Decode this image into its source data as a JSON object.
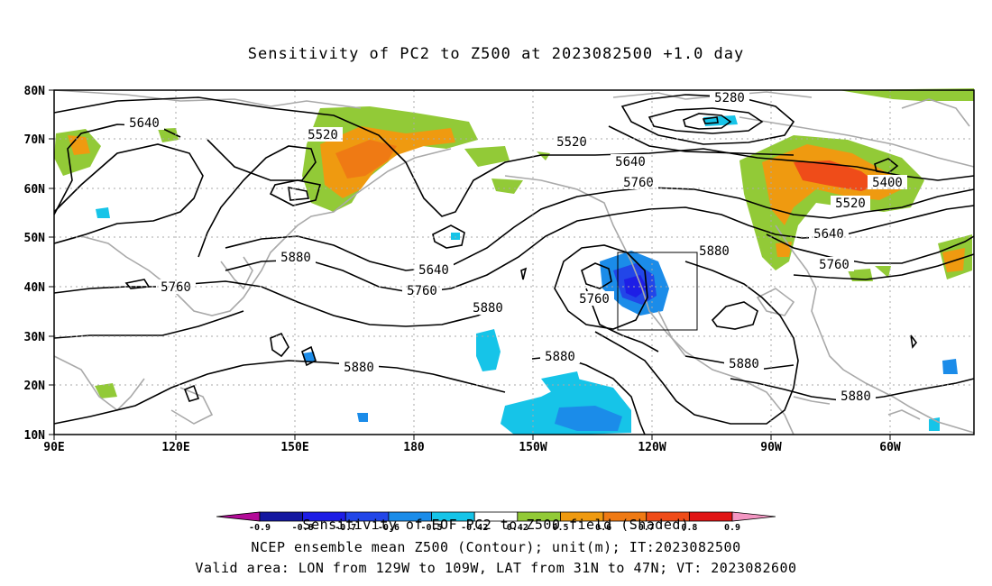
{
  "title": "Sensitivity of PC2 to Z500 at 2023082500 +1.0 day",
  "map": {
    "lat_labels": [
      "80N",
      "70N",
      "60N",
      "50N",
      "40N",
      "30N",
      "20N",
      "10N"
    ],
    "lon_labels": [
      "90E",
      "120E",
      "150E",
      "180",
      "150W",
      "120W",
      "90W",
      "60W"
    ],
    "lon_range": [
      "90E",
      "35W"
    ],
    "lat_range": [
      "10N",
      "80N"
    ],
    "contour_labels": [
      "5640",
      "5520",
      "5280",
      "5520",
      "5640",
      "5760",
      "5400",
      "5520",
      "5640",
      "5760",
      "5880",
      "5760",
      "5880",
      "5640",
      "5760",
      "5880",
      "5760",
      "5880",
      "5880",
      "5880",
      "5880"
    ],
    "contour_color": "#000000",
    "coast_color": "#a9a9a9",
    "grid": "dotted"
  },
  "colorbar": {
    "levels": [
      "-0.9",
      "-0.8",
      "-0.7",
      "-0.6",
      "-0.5",
      "-0.42",
      "0.42",
      "0.5",
      "0.6",
      "0.7",
      "0.8",
      "0.9"
    ],
    "colors": [
      "#b30b98",
      "#1418a0",
      "#1e1ee6",
      "#2246e8",
      "#1b8ce9",
      "#16c4e8",
      "#ffffff",
      "#92ca37",
      "#ef9a10",
      "#ef7a14",
      "#ef4c19",
      "#e01414",
      "#f396c2"
    ]
  },
  "captions": {
    "line1": "Sensitivity of EOF PC2 to Z500 field (Shaded)",
    "line2": "NCEP ensemble mean Z500 (Contour); unit(m); IT:2023082500",
    "line3": "Valid area: LON from 129W to 109W, LAT from 31N to 47N; VT: 2023082600"
  }
}
